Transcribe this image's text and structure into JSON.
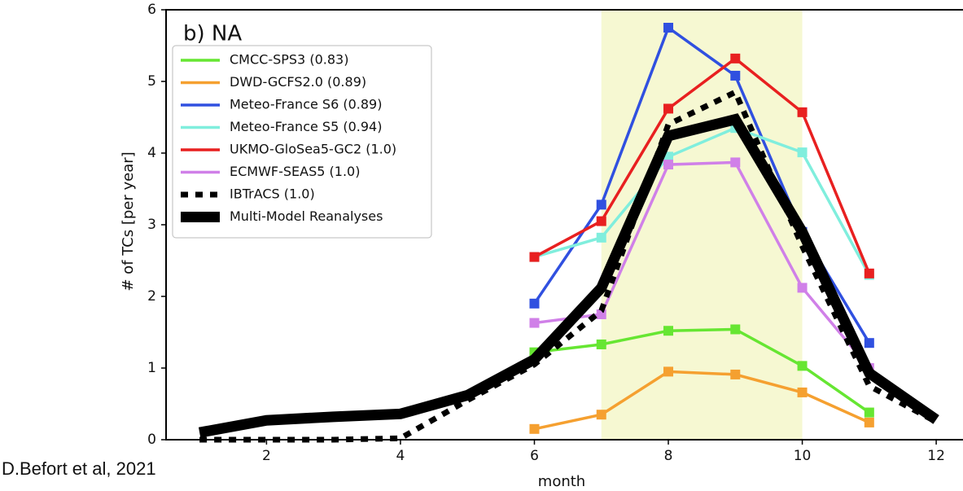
{
  "chart_data": {
    "type": "line",
    "title": "b) NA",
    "xlabel": "month",
    "ylabel": "# of TCs [per year]",
    "source": "D.Befort et al, 2021",
    "x": [
      1,
      2,
      3,
      4,
      5,
      6,
      7,
      8,
      9,
      10,
      11,
      12
    ],
    "xlim": [
      0.5,
      12.4
    ],
    "ylim": [
      0,
      6
    ],
    "xticks": [
      2,
      4,
      6,
      8,
      10,
      12
    ],
    "yticks": [
      0,
      1,
      2,
      3,
      4,
      5,
      6
    ],
    "highlight_x": [
      7,
      10
    ],
    "highlight_color": "#f6f8d2",
    "legend": "upper left",
    "series": [
      {
        "name": "CMCC-SPS3 (0.83)",
        "color": "#66e632",
        "style": "solid",
        "values": [
          null,
          null,
          null,
          null,
          null,
          1.22,
          1.33,
          1.52,
          1.54,
          1.03,
          0.38,
          null
        ]
      },
      {
        "name": "DWD-GCFS2.0 (0.89)",
        "color": "#f5a030",
        "style": "solid",
        "values": [
          null,
          null,
          null,
          null,
          null,
          0.15,
          0.35,
          0.95,
          0.91,
          0.66,
          0.24,
          null
        ]
      },
      {
        "name": "Meteo-France S6 (0.89)",
        "color": "#3050e0",
        "style": "solid",
        "values": [
          null,
          null,
          null,
          null,
          null,
          1.9,
          3.28,
          5.75,
          5.08,
          2.9,
          1.35,
          null
        ]
      },
      {
        "name": "Meteo-France S5 (0.94)",
        "color": "#80eedd",
        "style": "solid",
        "values": [
          null,
          null,
          null,
          null,
          null,
          2.55,
          2.82,
          3.95,
          4.35,
          4.01,
          2.3,
          null
        ]
      },
      {
        "name": "UKMO-GloSea5-GC2 (1.0)",
        "color": "#e82020",
        "style": "solid",
        "values": [
          null,
          null,
          null,
          null,
          null,
          2.55,
          3.05,
          4.62,
          5.32,
          4.57,
          2.32,
          null
        ]
      },
      {
        "name": "ECMWF-SEAS5 (1.0)",
        "color": "#d080e8",
        "style": "solid",
        "values": [
          null,
          null,
          null,
          null,
          null,
          1.63,
          1.75,
          3.84,
          3.87,
          2.12,
          1.0,
          null
        ]
      },
      {
        "name": "IBTrACS (1.0)",
        "color": "#000000",
        "style": "dotted",
        "values": [
          0.0,
          0.0,
          0.0,
          0.02,
          0.55,
          1.05,
          1.8,
          4.4,
          4.85,
          2.7,
          0.75,
          0.25
        ]
      },
      {
        "name": "Multi-Model Reanalyses",
        "color": "#000000",
        "style": "thick",
        "values": [
          0.1,
          0.27,
          0.32,
          0.36,
          0.62,
          1.12,
          2.12,
          4.24,
          4.47,
          2.9,
          0.93,
          0.28
        ]
      }
    ]
  }
}
